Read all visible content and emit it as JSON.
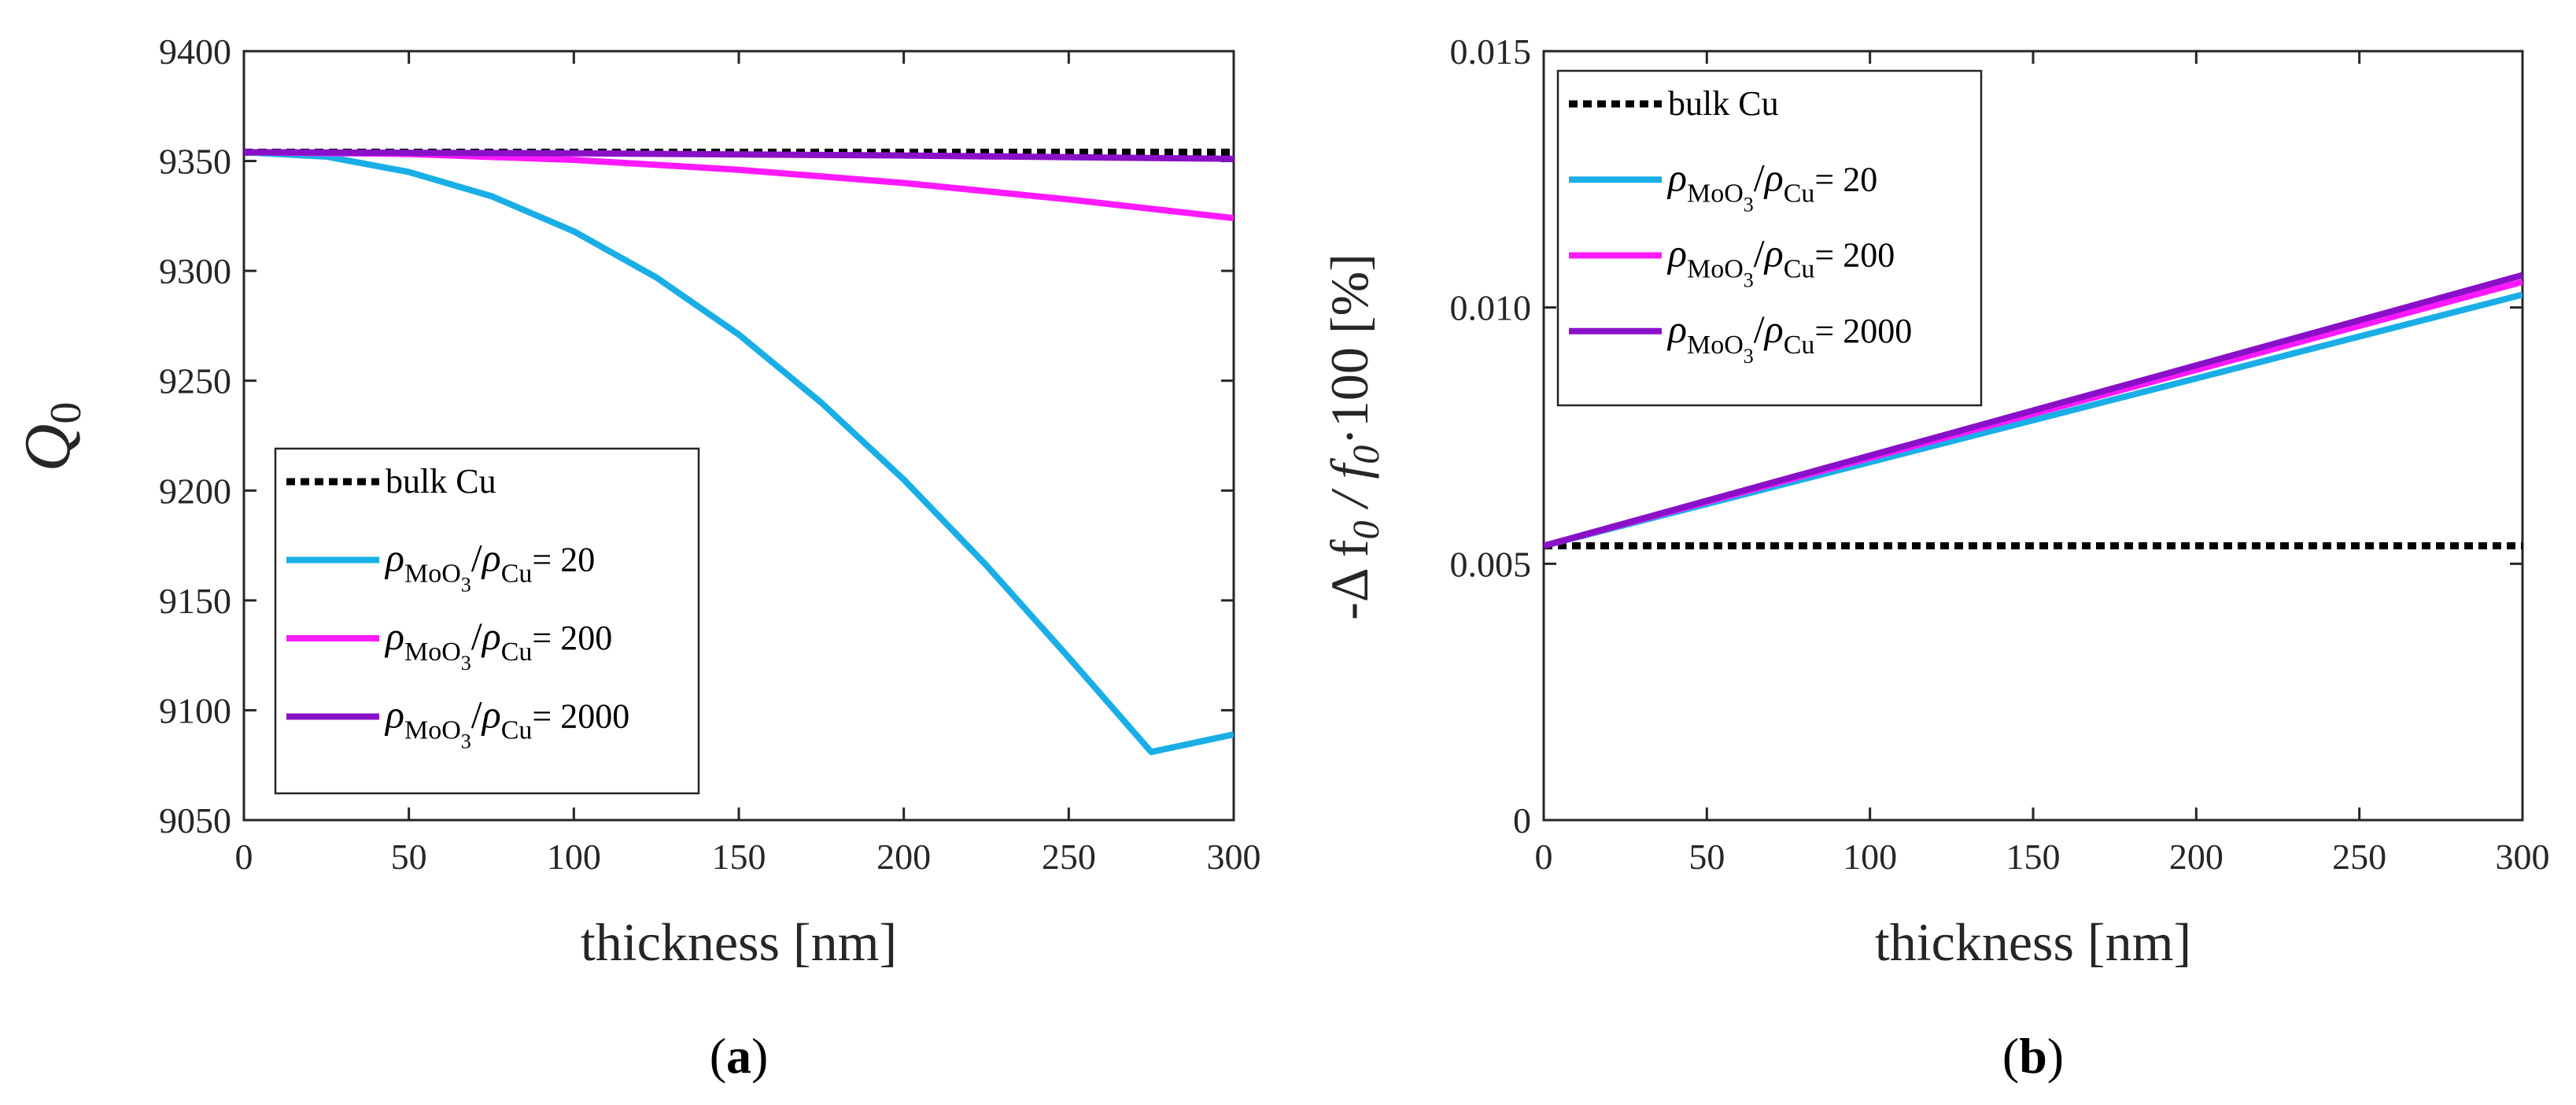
{
  "colors": {
    "bulk": "#000000",
    "r20": "#1aaee6",
    "r200": "#ff19ff",
    "r2000": "#8a10c8",
    "axis": "#262626"
  },
  "legend_common": {
    "bulk_label": "bulk Cu",
    "rho": "ρ",
    "sub_num": "MoO",
    "sub_num3": "3",
    "slash": "/",
    "sub_den": "Cu",
    "eq": "= "
  },
  "chart_data": [
    {
      "type": "line",
      "caption_open": "(",
      "caption": "a",
      "caption_close": ")",
      "xlabel": "thickness [nm]",
      "ylabel": "Q",
      "ylabel_sub": "0",
      "xlim": [
        0,
        300
      ],
      "ylim": [
        9050,
        9400
      ],
      "xticks": [
        0,
        50,
        100,
        150,
        200,
        250,
        300
      ],
      "yticks": [
        9050,
        9100,
        9150,
        9200,
        9250,
        9300,
        9350,
        9400
      ],
      "xtick_labels": [
        "0",
        "50",
        "100",
        "150",
        "200",
        "250",
        "300"
      ],
      "ytick_labels": [
        "9050",
        "9100",
        "9150",
        "9200",
        "9250",
        "9300",
        "9350",
        "9400"
      ],
      "legend_location": "lower-left",
      "series": [
        {
          "name": "bulk Cu",
          "ratio": "",
          "style": "dotted",
          "x": [
            0,
            300
          ],
          "y": [
            9354,
            9354
          ]
        },
        {
          "name": "rho20",
          "ratio": "20",
          "style": "solid",
          "x": [
            0,
            25,
            50,
            75,
            100,
            125,
            150,
            175,
            200,
            225,
            250,
            275,
            300
          ],
          "y": [
            9354,
            9352,
            9345,
            9334,
            9318,
            9297,
            9271,
            9240,
            9205,
            9166,
            9124,
            9081,
            9089
          ]
        },
        {
          "name": "rho200",
          "ratio": "200",
          "style": "solid",
          "x": [
            0,
            50,
            100,
            150,
            200,
            250,
            300
          ],
          "y": [
            9354,
            9353.2,
            9350.5,
            9346,
            9340,
            9332.5,
            9324
          ]
        },
        {
          "name": "rho2000",
          "ratio": "2000",
          "style": "solid",
          "x": [
            0,
            100,
            200,
            300
          ],
          "y": [
            9354,
            9353.5,
            9352.5,
            9351
          ]
        }
      ]
    },
    {
      "type": "line",
      "caption_open": "(",
      "caption": "b",
      "caption_close": ")",
      "xlabel": "thickness [nm]",
      "ylabel": "-Δ f",
      "ylabel_sub": "0",
      "ylabel_mid": " / f",
      "ylabel_sub2": "0",
      "ylabel_end": "·100 [%]",
      "xlim": [
        0,
        300
      ],
      "ylim": [
        0,
        0.015
      ],
      "xticks": [
        0,
        50,
        100,
        150,
        200,
        250,
        300
      ],
      "yticks": [
        0,
        0.005,
        0.01,
        0.015
      ],
      "xtick_labels": [
        "0",
        "50",
        "100",
        "150",
        "200",
        "250",
        "300"
      ],
      "ytick_labels": [
        "0",
        "0.005",
        "0.010",
        "0.015"
      ],
      "legend_location": "upper-left",
      "series": [
        {
          "name": "bulk Cu",
          "ratio": "",
          "style": "dotted",
          "x": [
            0,
            300
          ],
          "y": [
            0.00535,
            0.00535
          ]
        },
        {
          "name": "rho20",
          "ratio": "20",
          "style": "solid",
          "x": [
            0,
            300
          ],
          "y": [
            0.00535,
            0.01025
          ]
        },
        {
          "name": "rho200",
          "ratio": "200",
          "style": "solid",
          "x": [
            0,
            300
          ],
          "y": [
            0.00535,
            0.0105
          ]
        },
        {
          "name": "rho2000",
          "ratio": "2000",
          "style": "solid",
          "x": [
            0,
            300
          ],
          "y": [
            0.00535,
            0.01063
          ]
        }
      ]
    }
  ]
}
